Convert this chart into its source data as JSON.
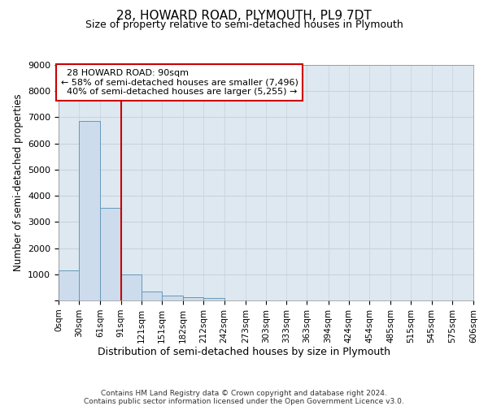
{
  "title": "28, HOWARD ROAD, PLYMOUTH, PL9 7DT",
  "subtitle": "Size of property relative to semi-detached houses in Plymouth",
  "xlabel": "Distribution of semi-detached houses by size in Plymouth",
  "ylabel": "Number of semi-detached properties",
  "property_label": "28 HOWARD ROAD: 90sqm",
  "pct_smaller": 58,
  "n_smaller": 7496,
  "pct_larger": 40,
  "n_larger": 5255,
  "red_line_x": 91,
  "bin_edges": [
    0,
    30,
    61,
    91,
    121,
    151,
    182,
    212,
    242,
    273,
    303,
    333,
    363,
    394,
    424,
    454,
    485,
    515,
    545,
    575,
    606
  ],
  "bar_heights": [
    1150,
    6850,
    3550,
    980,
    350,
    200,
    120,
    90,
    0,
    0,
    0,
    0,
    0,
    0,
    0,
    0,
    0,
    0,
    0,
    0
  ],
  "bar_color": "#ccdcec",
  "bar_edge_color": "#6699bb",
  "grid_color": "#c8d0dc",
  "bg_color": "#dde8f0",
  "red_line_color": "#cc0000",
  "ann_box_color": "#cc0000",
  "ylim": [
    0,
    9000
  ],
  "yticks": [
    0,
    1000,
    2000,
    3000,
    4000,
    5000,
    6000,
    7000,
    8000,
    9000
  ],
  "tick_labels": [
    "0sqm",
    "30sqm",
    "61sqm",
    "91sqm",
    "121sqm",
    "151sqm",
    "182sqm",
    "212sqm",
    "242sqm",
    "273sqm",
    "303sqm",
    "333sqm",
    "363sqm",
    "394sqm",
    "424sqm",
    "454sqm",
    "485sqm",
    "515sqm",
    "545sqm",
    "575sqm",
    "606sqm"
  ],
  "footer_line1": "Contains HM Land Registry data © Crown copyright and database right 2024.",
  "footer_line2": "Contains public sector information licensed under the Open Government Licence v3.0."
}
